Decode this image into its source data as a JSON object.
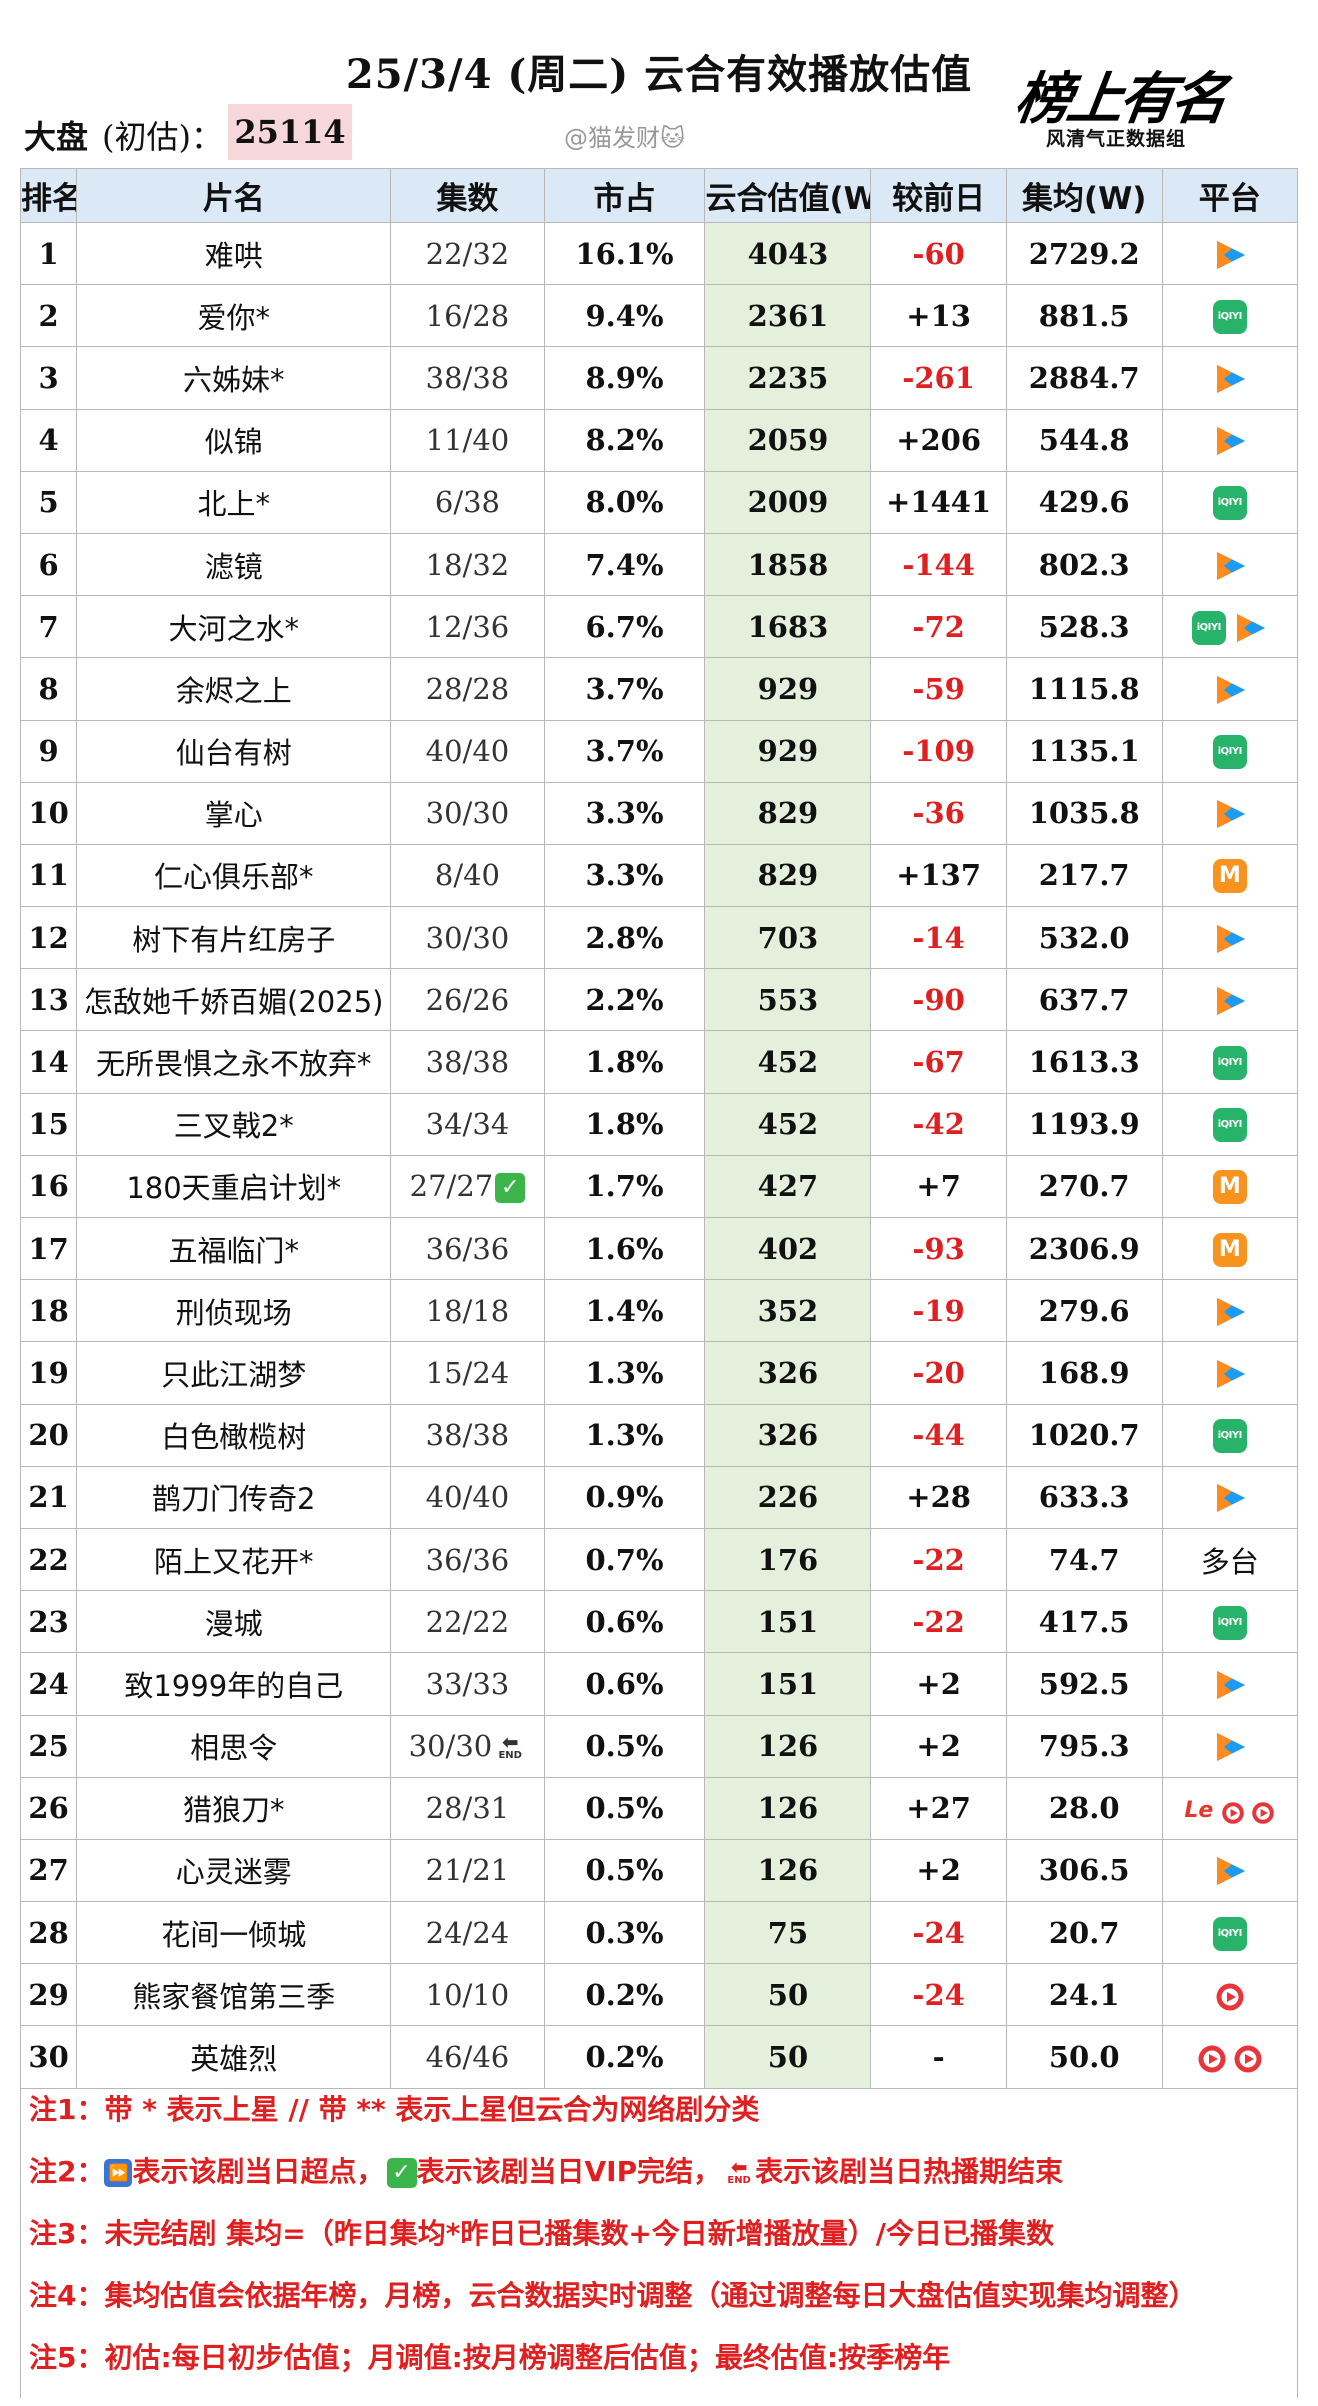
{
  "header": {
    "title": "25/3/4 (周二) 云合有效播放估值",
    "dapan_label": "大盘",
    "dapan_paren": "(初估)：",
    "dapan_value": "25114",
    "weibo": "@猫发财🐱",
    "logo_main": "榜上有名",
    "logo_sub": "风清气正数据组"
  },
  "columns": [
    "排名",
    "片名",
    "集数",
    "市占",
    "云合估值(W)",
    "较前日",
    "集均(W)",
    "平台"
  ],
  "rows": [
    {
      "rank": "1",
      "name": "难哄",
      "eps": "22/32",
      "share": "16.1%",
      "est": "4043",
      "chg": "-60",
      "neg": true,
      "avg": "2729.2",
      "platforms": [
        "tencent"
      ]
    },
    {
      "rank": "2",
      "name": "爱你*",
      "eps": "16/28",
      "share": "9.4%",
      "est": "2361",
      "chg": "+13",
      "neg": false,
      "avg": "881.5",
      "platforms": [
        "iqiyi"
      ]
    },
    {
      "rank": "3",
      "name": "六姊妹*",
      "eps": "38/38",
      "share": "8.9%",
      "est": "2235",
      "chg": "-261",
      "neg": true,
      "avg": "2884.7",
      "platforms": [
        "tencent"
      ]
    },
    {
      "rank": "4",
      "name": "似锦",
      "eps": "11/40",
      "share": "8.2%",
      "est": "2059",
      "chg": "+206",
      "neg": false,
      "avg": "544.8",
      "platforms": [
        "tencent"
      ]
    },
    {
      "rank": "5",
      "name": "北上*",
      "eps": "6/38",
      "share": "8.0%",
      "est": "2009",
      "chg": "+1441",
      "neg": false,
      "avg": "429.6",
      "platforms": [
        "iqiyi"
      ]
    },
    {
      "rank": "6",
      "name": "滤镜",
      "eps": "18/32",
      "share": "7.4%",
      "est": "1858",
      "chg": "-144",
      "neg": true,
      "avg": "802.3",
      "platforms": [
        "tencent"
      ]
    },
    {
      "rank": "7",
      "name": "大河之水*",
      "eps": "12/36",
      "share": "6.7%",
      "est": "1683",
      "chg": "-72",
      "neg": true,
      "avg": "528.3",
      "platforms": [
        "iqiyi",
        "tencent"
      ]
    },
    {
      "rank": "8",
      "name": "余烬之上",
      "eps": "28/28",
      "share": "3.7%",
      "est": "929",
      "chg": "-59",
      "neg": true,
      "avg": "1115.8",
      "platforms": [
        "tencent"
      ]
    },
    {
      "rank": "9",
      "name": "仙台有树",
      "eps": "40/40",
      "share": "3.7%",
      "est": "929",
      "chg": "-109",
      "neg": true,
      "avg": "1135.1",
      "platforms": [
        "iqiyi"
      ]
    },
    {
      "rank": "10",
      "name": "掌心",
      "eps": "30/30",
      "share": "3.3%",
      "est": "829",
      "chg": "-36",
      "neg": true,
      "avg": "1035.8",
      "platforms": [
        "tencent"
      ]
    },
    {
      "rank": "11",
      "name": "仁心俱乐部*",
      "eps": "8/40",
      "share": "3.3%",
      "est": "829",
      "chg": "+137",
      "neg": false,
      "avg": "217.7",
      "platforms": [
        "mango"
      ]
    },
    {
      "rank": "12",
      "name": "树下有片红房子",
      "eps": "30/30",
      "share": "2.8%",
      "est": "703",
      "chg": "-14",
      "neg": true,
      "avg": "532.0",
      "platforms": [
        "tencent"
      ]
    },
    {
      "rank": "13",
      "name": "怎敌她千娇百媚(2025)",
      "eps": "26/26",
      "share": "2.2%",
      "est": "553",
      "chg": "-90",
      "neg": true,
      "avg": "637.7",
      "platforms": [
        "tencent"
      ]
    },
    {
      "rank": "14",
      "name": "无所畏惧之永不放弃*",
      "eps": "38/38",
      "share": "1.8%",
      "est": "452",
      "chg": "-67",
      "neg": true,
      "avg": "1613.3",
      "platforms": [
        "iqiyi"
      ]
    },
    {
      "rank": "15",
      "name": "三叉戟2*",
      "eps": "34/34",
      "share": "1.8%",
      "est": "452",
      "chg": "-42",
      "neg": true,
      "avg": "1193.9",
      "platforms": [
        "iqiyi"
      ]
    },
    {
      "rank": "16",
      "name": "180天重启计划*",
      "eps": "27/27",
      "eps_badge": "vip_end",
      "share": "1.7%",
      "est": "427",
      "chg": "+7",
      "neg": false,
      "avg": "270.7",
      "platforms": [
        "mango"
      ]
    },
    {
      "rank": "17",
      "name": "五福临门*",
      "eps": "36/36",
      "share": "1.6%",
      "est": "402",
      "chg": "-93",
      "neg": true,
      "avg": "2306.9",
      "platforms": [
        "mango"
      ]
    },
    {
      "rank": "18",
      "name": "刑侦现场",
      "eps": "18/18",
      "share": "1.4%",
      "est": "352",
      "chg": "-19",
      "neg": true,
      "avg": "279.6",
      "platforms": [
        "tencent"
      ]
    },
    {
      "rank": "19",
      "name": "只此江湖梦",
      "eps": "15/24",
      "share": "1.3%",
      "est": "326",
      "chg": "-20",
      "neg": true,
      "avg": "168.9",
      "platforms": [
        "tencent"
      ]
    },
    {
      "rank": "20",
      "name": "白色橄榄树",
      "eps": "38/38",
      "share": "1.3%",
      "est": "326",
      "chg": "-44",
      "neg": true,
      "avg": "1020.7",
      "platforms": [
        "iqiyi"
      ]
    },
    {
      "rank": "21",
      "name": "鹊刀门传奇2",
      "eps": "40/40",
      "share": "0.9%",
      "est": "226",
      "chg": "+28",
      "neg": false,
      "avg": "633.3",
      "platforms": [
        "tencent"
      ]
    },
    {
      "rank": "22",
      "name": "陌上又花开*",
      "eps": "36/36",
      "share": "0.7%",
      "est": "176",
      "chg": "-22",
      "neg": true,
      "avg": "74.7",
      "platforms": [],
      "platform_text": "多台"
    },
    {
      "rank": "23",
      "name": "漫城",
      "eps": "22/22",
      "share": "0.6%",
      "est": "151",
      "chg": "-22",
      "neg": true,
      "avg": "417.5",
      "platforms": [
        "iqiyi"
      ]
    },
    {
      "rank": "24",
      "name": "致1999年的自己",
      "eps": "33/33",
      "share": "0.6%",
      "est": "151",
      "chg": "+2",
      "neg": false,
      "avg": "592.5",
      "platforms": [
        "tencent"
      ]
    },
    {
      "rank": "25",
      "name": "相思令",
      "eps": "30/30",
      "eps_badge": "heat_end",
      "share": "0.5%",
      "est": "126",
      "chg": "+2",
      "neg": false,
      "avg": "795.3",
      "platforms": [
        "tencent"
      ]
    },
    {
      "rank": "26",
      "name": "猎狼刀*",
      "eps": "28/31",
      "share": "0.5%",
      "est": "126",
      "chg": "+27",
      "neg": false,
      "avg": "28.0",
      "platforms": [
        "le",
        "youku-s",
        "youku-s"
      ]
    },
    {
      "rank": "27",
      "name": "心灵迷雾",
      "eps": "21/21",
      "share": "0.5%",
      "est": "126",
      "chg": "+2",
      "neg": false,
      "avg": "306.5",
      "platforms": [
        "tencent"
      ]
    },
    {
      "rank": "28",
      "name": "花间一倾城",
      "eps": "24/24",
      "share": "0.3%",
      "est": "75",
      "chg": "-24",
      "neg": true,
      "avg": "20.7",
      "platforms": [
        "iqiyi"
      ]
    },
    {
      "rank": "29",
      "name": "熊家餐馆第三季",
      "eps": "10/10",
      "share": "0.2%",
      "est": "50",
      "chg": "-24",
      "neg": true,
      "avg": "24.1",
      "platforms": [
        "youku"
      ]
    },
    {
      "rank": "30",
      "name": "英雄烈",
      "eps": "46/46",
      "share": "0.2%",
      "est": "50",
      "chg": "-",
      "neg": true,
      "avg": "50.0",
      "platforms": [
        "youku",
        "youku"
      ]
    }
  ],
  "badges": {
    "vip_end_glyph": "✓",
    "heat_end_arrow": "⬅",
    "heat_end_text": "END",
    "super_point_glyph": "⏩"
  },
  "notes": {
    "n1": "注1：带 * 表示上星 // 带 ** 表示上星但云合为网络剧分类",
    "n2_a": "注2：",
    "n2_b": "表示该剧当日超点，",
    "n2_c": "表示该剧当日VIP完结，",
    "n2_d": "表示该剧当日热播期结束",
    "n3": "注3：未完结剧 集均=（昨日集均*昨日已播集数+今日新增播放量）/今日已播集数",
    "n4": "注4：集均估值会依据年榜，月榜，云合数据实时调整（通过调整每日大盘估值实现集均调整）",
    "n5": "注5：初估:每日初步估值；月调值:按月榜调整后估值；最终估值:按季榜年"
  },
  "colors": {
    "header_bg": "#dbe8f5",
    "estimate_bg": "#e4f0dc",
    "negative": "#e02020",
    "dapan_bg": "#f6d7dc",
    "iqiyi": "#27b36a",
    "mango": "#f7931e",
    "youku": "#e8353b",
    "vip_check": "#3bb54a"
  }
}
